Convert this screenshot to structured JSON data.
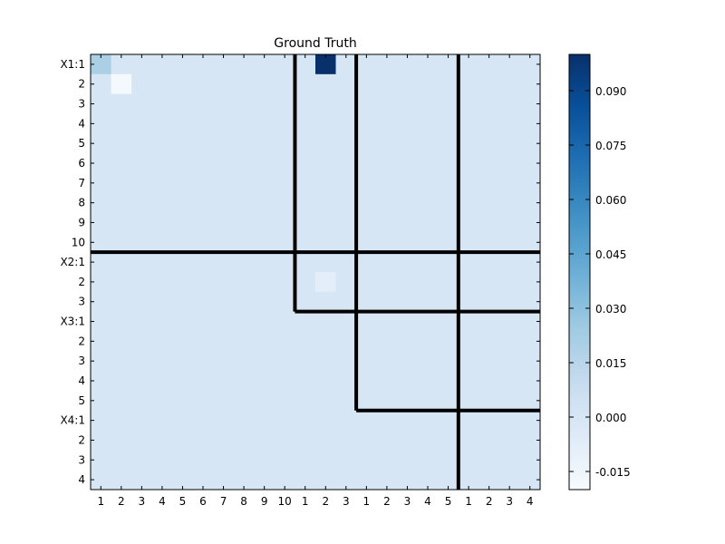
{
  "chart_data": {
    "type": "heatmap",
    "title": "Ground Truth",
    "row_labels": [
      "X1:1",
      "2",
      "3",
      "4",
      "5",
      "6",
      "7",
      "8",
      "9",
      "10",
      "X2:1",
      "2",
      "3",
      "X3:1",
      "2",
      "3",
      "4",
      "5",
      "X4:1",
      "2",
      "3",
      "4"
    ],
    "col_labels": [
      "1",
      "2",
      "3",
      "4",
      "5",
      "6",
      "7",
      "8",
      "9",
      "10",
      "1",
      "2",
      "3",
      "1",
      "2",
      "3",
      "4",
      "5",
      "1",
      "2",
      "3",
      "4"
    ],
    "background_value": 0.0,
    "highlighted_cells": [
      {
        "row": 0,
        "col": 0,
        "value": 0.02
      },
      {
        "row": 1,
        "col": 1,
        "value": -0.018
      },
      {
        "row": 0,
        "col": 11,
        "value": 0.1
      },
      {
        "row": 11,
        "col": 11,
        "value": -0.008
      }
    ],
    "block_rows": [
      {
        "name": "X1",
        "size": 10
      },
      {
        "name": "X2",
        "size": 3
      },
      {
        "name": "X3",
        "size": 5
      },
      {
        "name": "X4",
        "size": 4
      }
    ],
    "colorbar": {
      "vmin": -0.02,
      "vmax": 0.1,
      "ticks": [
        "-0.015",
        "0.000",
        "0.015",
        "0.030",
        "0.045",
        "0.060",
        "0.075",
        "0.090"
      ],
      "colormap": "Blues"
    }
  }
}
